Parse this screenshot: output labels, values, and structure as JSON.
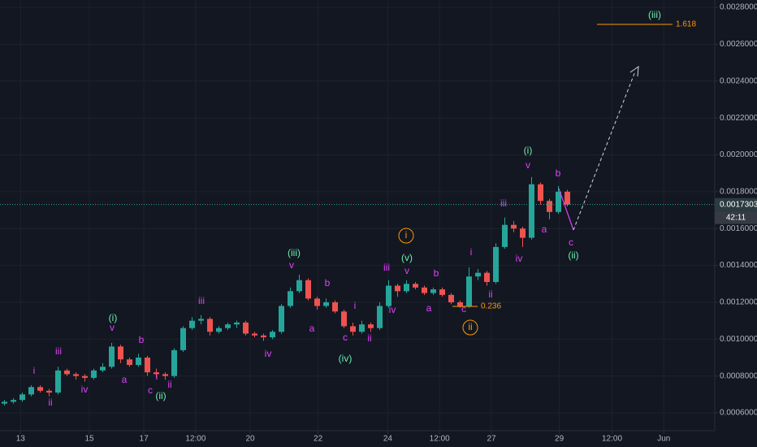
{
  "chart_data": {
    "type": "candlestick",
    "up_color": "#26a69a",
    "down_color": "#ef5350",
    "grid": true,
    "x": [
      0,
      1,
      2,
      3,
      4,
      5,
      6,
      7,
      8,
      9,
      10,
      11,
      12,
      13,
      14,
      15,
      16,
      17,
      18,
      19,
      20,
      21,
      22,
      23,
      24,
      25,
      26,
      27,
      28,
      29,
      30,
      31,
      32,
      33,
      34,
      35,
      36,
      37,
      38,
      39,
      40,
      41,
      42,
      43,
      44,
      45,
      46,
      47,
      48,
      49,
      50,
      51,
      52,
      53,
      54,
      55,
      56,
      57,
      58,
      59,
      60,
      61,
      62,
      63
    ],
    "open": [
      0.00065,
      0.00066,
      0.00067,
      0.0007,
      0.00074,
      0.00072,
      0.00071,
      0.00083,
      0.00081,
      0.0008,
      0.00079,
      0.00083,
      0.00085,
      0.00096,
      0.00089,
      0.00086,
      0.0009,
      0.00082,
      0.00081,
      0.0008,
      0.00094,
      0.00106,
      0.0011,
      0.00111,
      0.00104,
      0.00106,
      0.00108,
      0.00109,
      0.00103,
      0.00102,
      0.00101,
      0.00104,
      0.00118,
      0.00126,
      0.00132,
      0.00122,
      0.00118,
      0.0012,
      0.00115,
      0.00107,
      0.00104,
      0.00108,
      0.00106,
      0.00118,
      0.00129,
      0.00126,
      0.0013,
      0.00128,
      0.00125,
      0.00127,
      0.00124,
      0.0012,
      0.00118,
      0.00134,
      0.00136,
      0.00131,
      0.0015,
      0.00162,
      0.0016,
      0.00155,
      0.00184,
      0.00175,
      0.00169,
      0.0018
    ],
    "high": [
      0.00067,
      0.00068,
      0.00071,
      0.00075,
      0.00075,
      0.00073,
      0.00085,
      0.00084,
      0.00082,
      0.00081,
      0.00084,
      0.00087,
      0.00098,
      0.00097,
      0.0009,
      0.00092,
      0.00091,
      0.00084,
      0.00082,
      0.00095,
      0.00107,
      0.00112,
      0.00113,
      0.00112,
      0.00107,
      0.00109,
      0.0011,
      0.0011,
      0.00104,
      0.00103,
      0.00105,
      0.00119,
      0.00128,
      0.00135,
      0.00133,
      0.00123,
      0.00122,
      0.00121,
      0.00116,
      0.00109,
      0.0011,
      0.00109,
      0.0012,
      0.00132,
      0.0013,
      0.00132,
      0.00131,
      0.00129,
      0.00128,
      0.00128,
      0.00125,
      0.00121,
      0.00139,
      0.00138,
      0.00137,
      0.00152,
      0.00166,
      0.00164,
      0.00161,
      0.00188,
      0.00185,
      0.00176,
      0.00183,
      0.00181
    ],
    "low": [
      0.00064,
      0.00065,
      0.00066,
      0.00069,
      0.00071,
      0.00069,
      0.0007,
      0.0008,
      0.00078,
      0.00077,
      0.00078,
      0.00082,
      0.00084,
      0.00087,
      0.00085,
      0.00085,
      0.0008,
      0.00079,
      0.00078,
      0.00079,
      0.00093,
      0.00105,
      0.00108,
      0.00102,
      0.00103,
      0.00105,
      0.00106,
      0.00102,
      0.00101,
      0.00099,
      0.001,
      0.00103,
      0.00117,
      0.00125,
      0.00121,
      0.00116,
      0.00117,
      0.00114,
      0.00106,
      0.00102,
      0.00103,
      0.00104,
      0.00105,
      0.00117,
      0.00123,
      0.00125,
      0.00127,
      0.00124,
      0.00124,
      0.00123,
      0.00119,
      0.00117,
      0.00117,
      0.00132,
      0.00129,
      0.0013,
      0.00149,
      0.00158,
      0.0015,
      0.00154,
      0.00173,
      0.00165,
      0.00168,
      0.00172
    ],
    "close": [
      0.00066,
      0.00067,
      0.0007,
      0.00074,
      0.00072,
      0.00071,
      0.00083,
      0.00081,
      0.0008,
      0.00079,
      0.00083,
      0.00085,
      0.00096,
      0.00089,
      0.00086,
      0.0009,
      0.00082,
      0.00081,
      0.0008,
      0.00094,
      0.00106,
      0.0011,
      0.00111,
      0.00104,
      0.00106,
      0.00108,
      0.00109,
      0.00103,
      0.00102,
      0.00101,
      0.00104,
      0.00118,
      0.00126,
      0.00132,
      0.00122,
      0.00118,
      0.0012,
      0.00115,
      0.00107,
      0.00104,
      0.00108,
      0.00106,
      0.00118,
      0.00129,
      0.00126,
      0.0013,
      0.00128,
      0.00125,
      0.00127,
      0.00124,
      0.0012,
      0.00118,
      0.00134,
      0.00136,
      0.00131,
      0.0015,
      0.00162,
      0.0016,
      0.00155,
      0.00184,
      0.00175,
      0.00169,
      0.0018,
      0.00173
    ],
    "xlim": [
      -0.5,
      79.5
    ],
    "xticks": [
      {
        "value": 1.8,
        "label": "13"
      },
      {
        "value": 9.5,
        "label": "15"
      },
      {
        "value": 15.6,
        "label": "17"
      },
      {
        "value": 21.4,
        "label": "12:00"
      },
      {
        "value": 27.5,
        "label": "20"
      },
      {
        "value": 35.1,
        "label": "22"
      },
      {
        "value": 42.9,
        "label": "24"
      },
      {
        "value": 48.7,
        "label": "12:00"
      },
      {
        "value": 54.5,
        "label": "27"
      },
      {
        "value": 62.1,
        "label": "29"
      },
      {
        "value": 68.0,
        "label": "12:00"
      },
      {
        "value": 73.8,
        "label": "Jun"
      }
    ],
    "ylim": [
      0.000503,
      0.00284
    ],
    "yticks": [
      {
        "value": 0.0006,
        "label": "0.0006000"
      },
      {
        "value": 0.0008,
        "label": "0.0008000"
      },
      {
        "value": 0.001,
        "label": "0.0010000"
      },
      {
        "value": 0.0012,
        "label": "0.0012000"
      },
      {
        "value": 0.0014,
        "label": "0.0014000"
      },
      {
        "value": 0.0016,
        "label": "0.0016000"
      },
      {
        "value": 0.0018,
        "label": "0.0018000"
      },
      {
        "value": 0.002,
        "label": "0.0020000"
      },
      {
        "value": 0.0022,
        "label": "0.0022000"
      },
      {
        "value": 0.0024,
        "label": "0.0024000"
      },
      {
        "value": 0.0026,
        "label": "0.0026000"
      },
      {
        "value": 0.0028,
        "label": "0.0028000"
      }
    ],
    "last_price": {
      "value": 0.0017303,
      "label": "0.0017303"
    },
    "countdown": "42:11",
    "fib_levels": [
      0.236,
      1.618
    ],
    "wave_colors": {
      "minor": "#e040fb",
      "intermediate": "#69f0ae",
      "circled": "#ff9800"
    },
    "wave_labels": {
      "minor": [
        "i",
        "ii",
        "iii",
        "iv",
        "v",
        "a",
        "b",
        "c",
        "i",
        "ii",
        "iii",
        "iv",
        "v",
        "a",
        "b",
        "c",
        "i",
        "ii",
        "iii",
        "iv",
        "v",
        "a",
        "b",
        "c",
        "i",
        "ii",
        "iii",
        "iv",
        "v",
        "a",
        "b",
        "c"
      ],
      "intermediate": [
        "(i)",
        "(ii)",
        "(iii)",
        "(iv)",
        "(v)",
        "(i)",
        "(ii)",
        "(iii)"
      ],
      "circled": [
        "i",
        "ii"
      ]
    }
  }
}
